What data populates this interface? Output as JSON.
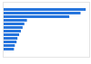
{
  "chart_data": {
    "type": "bar",
    "orientation": "horizontal",
    "categories": [
      null,
      null,
      null,
      null,
      null,
      null,
      null,
      null,
      null,
      null,
      null,
      null
    ],
    "values": [
      96,
      90,
      77,
      28,
      25,
      23,
      21,
      19,
      17,
      16,
      14,
      13
    ],
    "color": "#2876dd",
    "xlim": [
      0,
      100
    ],
    "tick_labels": false,
    "grid": false
  }
}
